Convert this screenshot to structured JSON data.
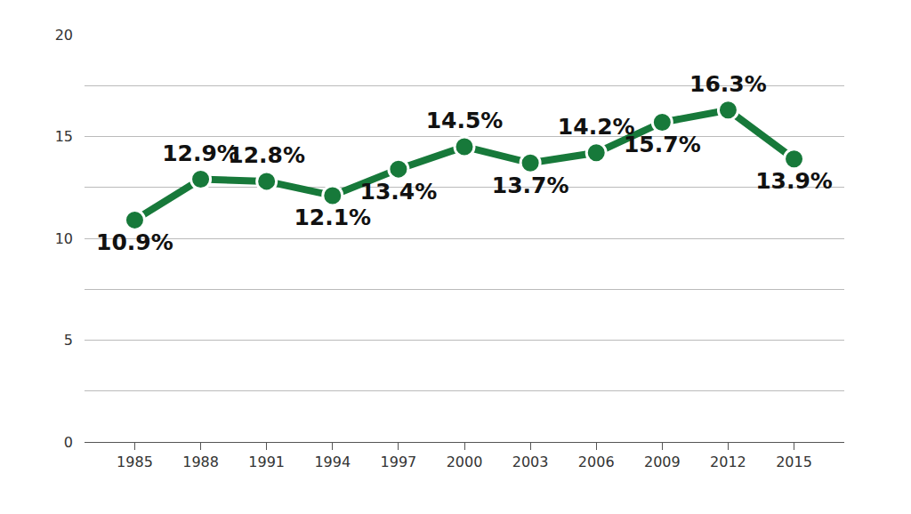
{
  "chart_data": {
    "type": "line",
    "categories": [
      "1985",
      "1988",
      "1991",
      "1994",
      "1997",
      "2000",
      "2003",
      "2006",
      "2009",
      "2012",
      "2015"
    ],
    "values": [
      10.9,
      12.9,
      12.8,
      12.1,
      13.4,
      14.5,
      13.7,
      14.2,
      15.7,
      16.3,
      13.9
    ],
    "value_labels": [
      "10.9%",
      "12.9%",
      "12.8%",
      "12.1%",
      "13.4%",
      "14.5%",
      "13.7%",
      "14.2%",
      "15.7%",
      "16.3%",
      "13.9%"
    ],
    "color": "#17793a",
    "ylim": [
      0,
      20
    ],
    "yticks": [
      0,
      5,
      10,
      15,
      20
    ],
    "grid": true,
    "data_labels": true,
    "marker": "circle",
    "line_style": "solid"
  }
}
